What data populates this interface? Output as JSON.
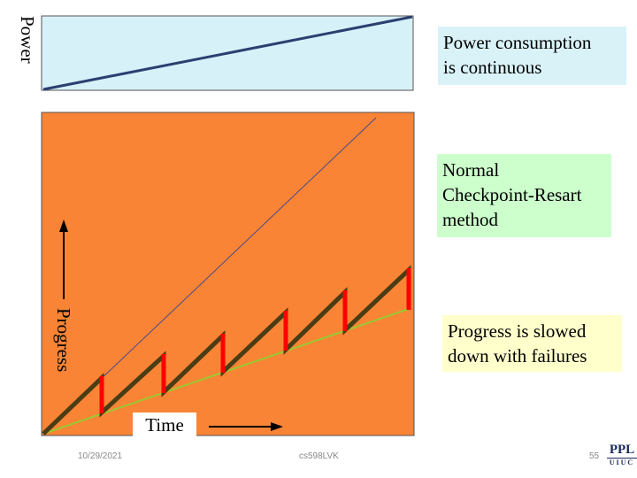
{
  "labels": {
    "power": "Power",
    "progress": "Progress",
    "time": "Time"
  },
  "callouts": {
    "power": [
      "Power consumption",
      "is continuous"
    ],
    "normal": [
      "Normal",
      "Checkpoint-Resart",
      "method"
    ],
    "progress": [
      "Progress is slowed",
      "down with failures"
    ]
  },
  "footer": {
    "date": "10/29/2021",
    "course": "cs598LVK",
    "page": "55"
  },
  "logo": {
    "top": "PPL",
    "bottom": "UIUC"
  },
  "colors": {
    "power_panel": "#d7f1f8",
    "progress_panel": "#f98435",
    "ideal_line": "#4a4a8a",
    "sawtooth": "#4a3c14",
    "failure": "#ff0000",
    "slowed_line": "#9ac832"
  },
  "failure_count": 6
}
